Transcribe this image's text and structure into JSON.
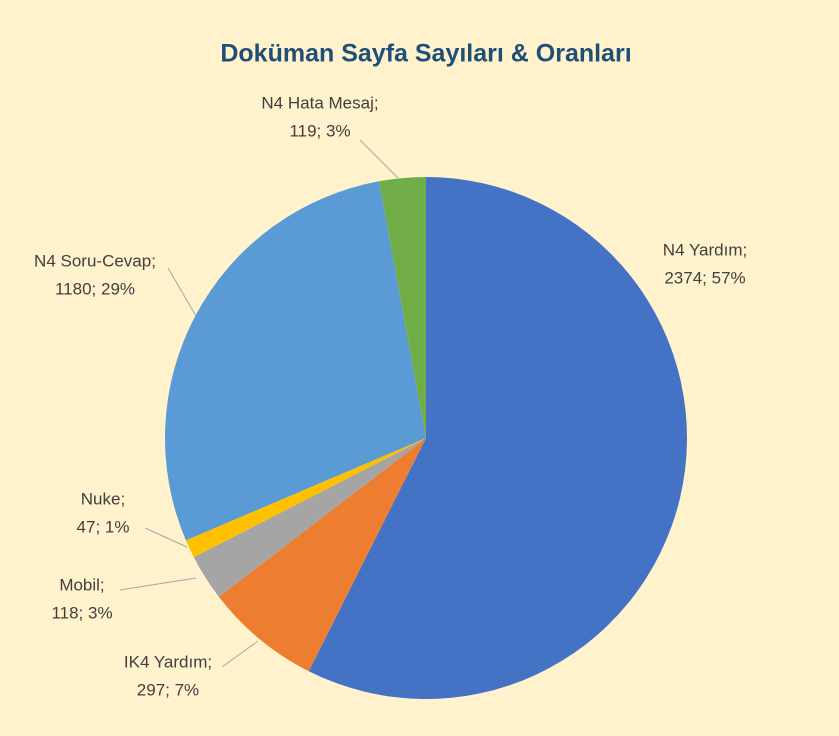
{
  "chart_data": {
    "type": "pie",
    "title": "Doküman Sayfa Sayıları & Oranları",
    "categories": [
      "N4 Yardım;",
      "IK4 Yardım;",
      "Mobil;",
      "Nuke;",
      "N4 Soru-Cevap;",
      "N4 Hata Mesaj;"
    ],
    "values": [
      2374,
      297,
      118,
      47,
      1180,
      119
    ],
    "value_labels": [
      "2374; 57%",
      "297; 7%",
      "118; 3%",
      "47; 1%",
      "1180; 29%",
      "119; 3%"
    ],
    "colors": [
      "#4472c4",
      "#ed7d31",
      "#a5a5a5",
      "#ffc000",
      "#5b9bd5",
      "#70ad47"
    ]
  }
}
